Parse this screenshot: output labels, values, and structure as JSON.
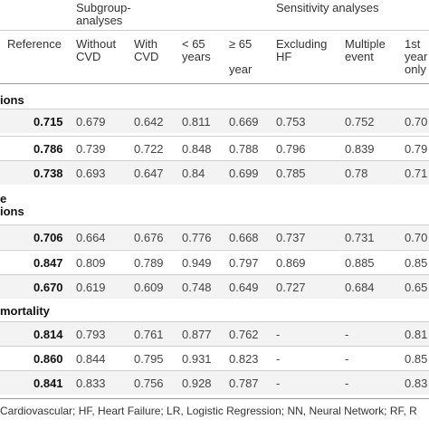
{
  "headers": {
    "subgroup_group": "Subgroup-\nanalyses",
    "sensitivity_group": "Sensitivity analyses",
    "columns": [
      {
        "key": "reference",
        "label": "Reference"
      },
      {
        "key": "without_cvd",
        "label": "Without\nCVD"
      },
      {
        "key": "with_cvd",
        "label": "With\nCVD"
      },
      {
        "key": "lt65",
        "label": "< 65\nyears"
      },
      {
        "key": "ge65",
        "label": "≥ 65\n\nyear"
      },
      {
        "key": "excl_hf",
        "label": "Excluding\nHF"
      },
      {
        "key": "multi",
        "label": "Multiple\nevent"
      },
      {
        "key": "first_year",
        "label": "1st\nyear\nonly"
      }
    ]
  },
  "sections": [
    {
      "title": "ions",
      "rows": [
        {
          "reference": "0.715",
          "without_cvd": "0.679",
          "with_cvd": "0.642",
          "lt65": "0.811",
          "ge65": "0.669",
          "excl_hf": "0.753",
          "multi": "0.752",
          "first_year": "0.70"
        },
        {
          "reference": "0.786",
          "without_cvd": "0.739",
          "with_cvd": "0.722",
          "lt65": "0.848",
          "ge65": "0.788",
          "excl_hf": "0.796",
          "multi": "0.839",
          "first_year": "0.79"
        },
        {
          "reference": "0.738",
          "without_cvd": "0.693",
          "with_cvd": "0.647",
          "lt65": "0.84",
          "ge65": "0.699",
          "excl_hf": "0.785",
          "multi": "0.78",
          "first_year": "0.71"
        }
      ]
    },
    {
      "title": "e\nions",
      "rows": [
        {
          "reference": "0.706",
          "without_cvd": "0.664",
          "with_cvd": "0.676",
          "lt65": "0.776",
          "ge65": "0.668",
          "excl_hf": "0.737",
          "multi": "0.731",
          "first_year": "0.70"
        },
        {
          "reference": "0.847",
          "without_cvd": "0.809",
          "with_cvd": "0.789",
          "lt65": "0.949",
          "ge65": "0.797",
          "excl_hf": "0.869",
          "multi": "0.885",
          "first_year": "0.85"
        },
        {
          "reference": "0.670",
          "without_cvd": "0.619",
          "with_cvd": "0.609",
          "lt65": "0.748",
          "ge65": "0.649",
          "excl_hf": "0.727",
          "multi": "0.684",
          "first_year": "0.65"
        }
      ]
    },
    {
      "title": "mortality",
      "rows": [
        {
          "reference": "0.814",
          "without_cvd": "0.793",
          "with_cvd": "0.761",
          "lt65": "0.877",
          "ge65": "0.762",
          "excl_hf": "-",
          "multi": "-",
          "first_year": "0.81"
        },
        {
          "reference": "0.860",
          "without_cvd": "0.844",
          "with_cvd": "0.795",
          "lt65": "0.931",
          "ge65": "0.823",
          "excl_hf": "-",
          "multi": "-",
          "first_year": "0.85"
        },
        {
          "reference": "0.841",
          "without_cvd": "0.833",
          "with_cvd": "0.756",
          "lt65": "0.928",
          "ge65": "0.787",
          "excl_hf": "-",
          "multi": "-",
          "first_year": "0.83"
        }
      ]
    }
  ],
  "footer": "Cardiovascular; HF, Heart Failure; LR, Logistic Regression; NN, Neural Network; RF, R",
  "colors": {
    "row_alt": "#f3f3f3",
    "rule": "#cfcfcf"
  }
}
